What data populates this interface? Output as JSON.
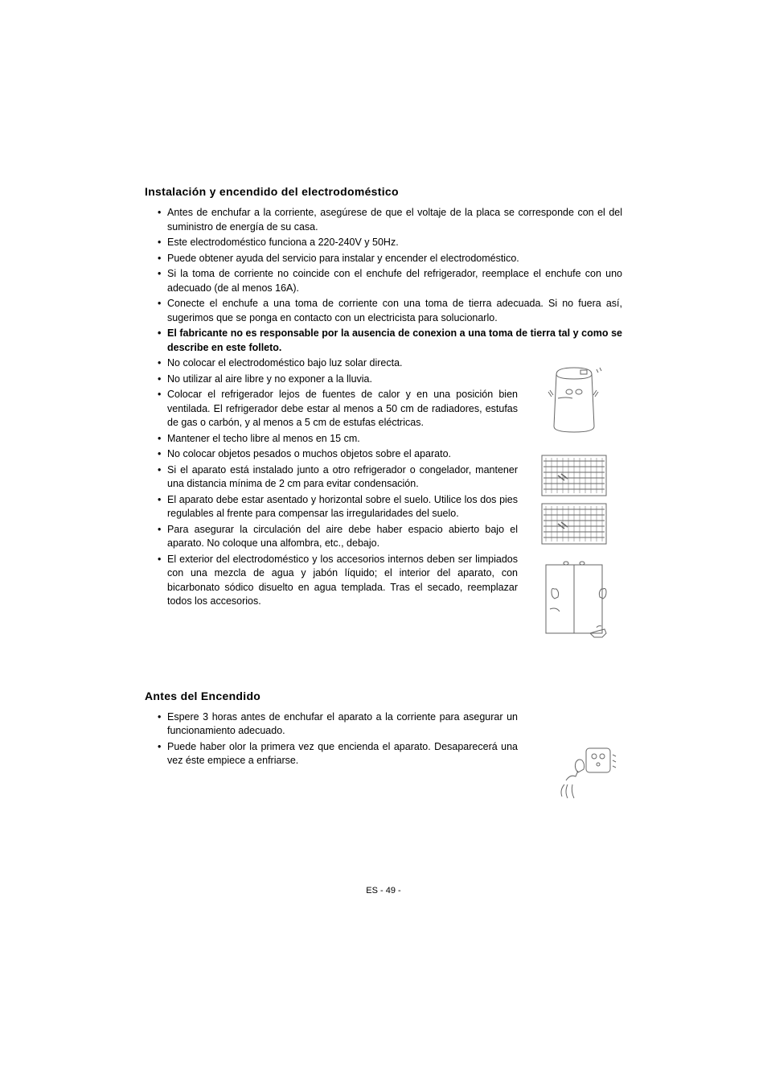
{
  "section1": {
    "title": "Instalación y encendido del electrodoméstico",
    "bullets": [
      {
        "text": "Antes de enchufar a la corriente, asegúrese de que el voltaje de la placa se corresponde con el del suministro de energía de su casa.",
        "bold": false,
        "wrapped": false
      },
      {
        "text": "Este electrodoméstico funciona a 220-240V y 50Hz.",
        "bold": false,
        "wrapped": false
      },
      {
        "text": "Puede obtener ayuda del servicio para instalar y encender el electrodoméstico.",
        "bold": false,
        "wrapped": false
      },
      {
        "text": "Si la toma de corriente no coincide con el enchufe del refrigerador, reemplace el enchufe con uno adecuado (de al menos 16A).",
        "bold": false,
        "wrapped": false
      },
      {
        "text": "Conecte el enchufe a una toma de corriente con una toma de tierra adecuada. Si no fuera así, sugerimos que se ponga en contacto con un electricista para solucionarlo.",
        "bold": false,
        "wrapped": false
      },
      {
        "text": "El fabricante no es responsable por la ausencia de conexion a una toma de tierra tal y como se describe en este folleto.",
        "bold": true,
        "wrapped": false
      },
      {
        "text": "No colocar el electrodoméstico bajo luz solar directa.",
        "bold": false,
        "wrapped": true
      },
      {
        "text": "No utilizar al aire libre y no exponer a la lluvia.",
        "bold": false,
        "wrapped": true
      },
      {
        "text": "Colocar el refrigerador lejos de fuentes de calor y en una posición bien ventilada. El refrigerador debe estar al menos a 50 cm de radiadores, estufas de gas o carbón, y al menos a 5 cm de estufas eléctricas.",
        "bold": false,
        "wrapped": true
      },
      {
        "text": "Mantener el techo libre al menos en 15 cm.",
        "bold": false,
        "wrapped": true
      },
      {
        "text": "No colocar objetos pesados o muchos objetos sobre el aparato.",
        "bold": false,
        "wrapped": true
      },
      {
        "text": "Si el aparato está instalado junto a otro refrigerador o congelador, mantener una distancia mínima de 2 cm para evitar condensación.",
        "bold": false,
        "wrapped": true
      },
      {
        "text": "El aparato debe estar asentado y horizontal sobre el suelo. Utilice los dos pies regulables al frente para compensar las irregularidades del suelo.",
        "bold": false,
        "wrapped": true
      },
      {
        "text": "Para asegurar la circulación del aire debe haber espacio abierto bajo el aparato. No coloque una alfombra, etc., debajo.",
        "bold": false,
        "wrapped": true
      },
      {
        "text": "El exterior del electrodoméstico y los accesorios internos deben ser limpiados con una mezcla de agua y jabón líquido; el interior del aparato, con bicarbonato sódico disuelto en agua templada. Tras el secado, reemplazar todos los accesorios.",
        "bold": false,
        "wrapped": true
      }
    ]
  },
  "section2": {
    "title": "Antes del Encendido",
    "bullets": [
      {
        "text": "Espere 3 horas antes de enchufar el aparato a la corriente para asegurar un funcionamiento adecuado.",
        "bold": false,
        "wrapped": true
      },
      {
        "text": "Puede haber olor la primera vez que encienda el aparato. Desaparecerá una vez éste empiece a enfriarse.",
        "bold": false,
        "wrapped": true
      }
    ]
  },
  "pageNumber": "ES - 49 -",
  "figures": {
    "stroke": "#666666",
    "strokeWidth": 1
  }
}
